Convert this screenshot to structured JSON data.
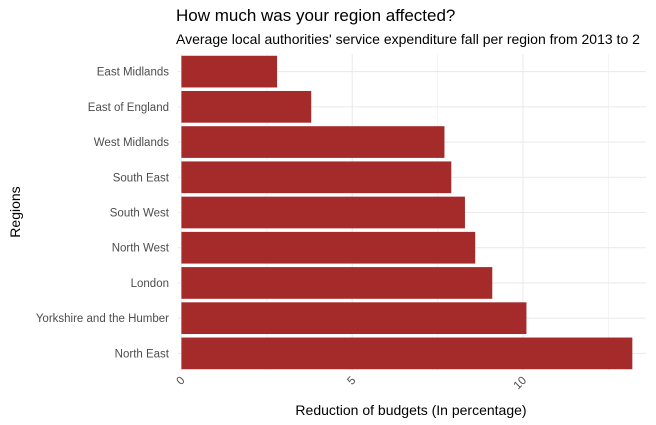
{
  "chart_data": {
    "type": "bar",
    "orientation": "horizontal",
    "title": "How much was your region affected?",
    "subtitle": "Average local authorities' service expenditure fall per region from 2013 to 2",
    "xlabel": "Reduction of budgets (In percentage)",
    "ylabel": "Regions",
    "categories": [
      "East Midlands",
      "East of England",
      "West Midlands",
      "South East",
      "South West",
      "North West",
      "London",
      "Yorkshire and the Humber",
      "North East"
    ],
    "values": [
      2.8,
      3.8,
      7.7,
      7.9,
      8.3,
      8.6,
      9.1,
      10.1,
      13.2
    ],
    "xlim": [
      -0.1,
      13.6
    ],
    "xticks": [
      0,
      5,
      10
    ],
    "xtick_labels": [
      "0",
      "5",
      "10"
    ],
    "bar_color": "#a52a2a",
    "grid": true,
    "legend": "none"
  }
}
